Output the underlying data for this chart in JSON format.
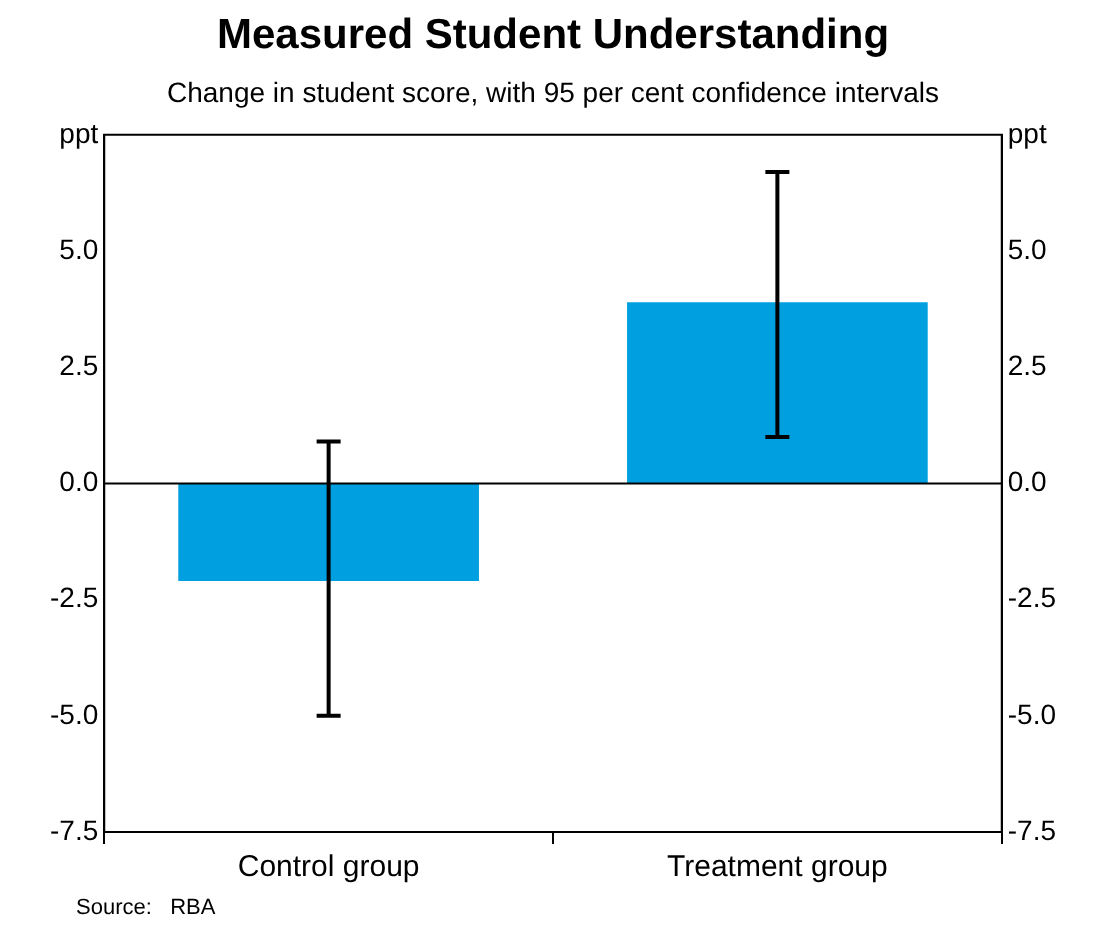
{
  "chart_data": {
    "type": "bar",
    "title": "Measured Student Understanding",
    "subtitle": "Change in student score, with 95 per cent confidence intervals",
    "categories": [
      "Control group",
      "Treatment group"
    ],
    "values": [
      -2.1,
      3.9
    ],
    "errors": [
      [
        -5.0,
        0.9
      ],
      [
        1.0,
        6.7
      ]
    ],
    "color": "#00a0e0",
    "ylim": [
      -7.5,
      7.5
    ],
    "yticks": [
      {
        "value": -7.5,
        "label": "-7.5"
      },
      {
        "value": -5,
        "label": "-5.0"
      },
      {
        "value": -2.5,
        "label": "-2.5"
      },
      {
        "value": 0,
        "label": "0.0"
      },
      {
        "value": 2.5,
        "label": "2.5"
      },
      {
        "value": 5,
        "label": "5.0"
      },
      {
        "value": 7.5,
        "label": "ppt"
      }
    ],
    "y2lim": [
      -7.5,
      7.5
    ],
    "y2ticks": [
      {
        "value": -7.5,
        "label": "-7.5"
      },
      {
        "value": -5,
        "label": "-5.0"
      },
      {
        "value": -2.5,
        "label": "-2.5"
      },
      {
        "value": 0,
        "label": "0.0"
      },
      {
        "value": 2.5,
        "label": "2.5"
      },
      {
        "value": 5,
        "label": "5.0"
      },
      {
        "value": 7.5,
        "label": "ppt"
      }
    ],
    "ref_lines": [
      {
        "axis": "y",
        "value": 0
      }
    ],
    "grid": false,
    "legend": false,
    "annotations": [
      "Source:   RBA"
    ]
  }
}
